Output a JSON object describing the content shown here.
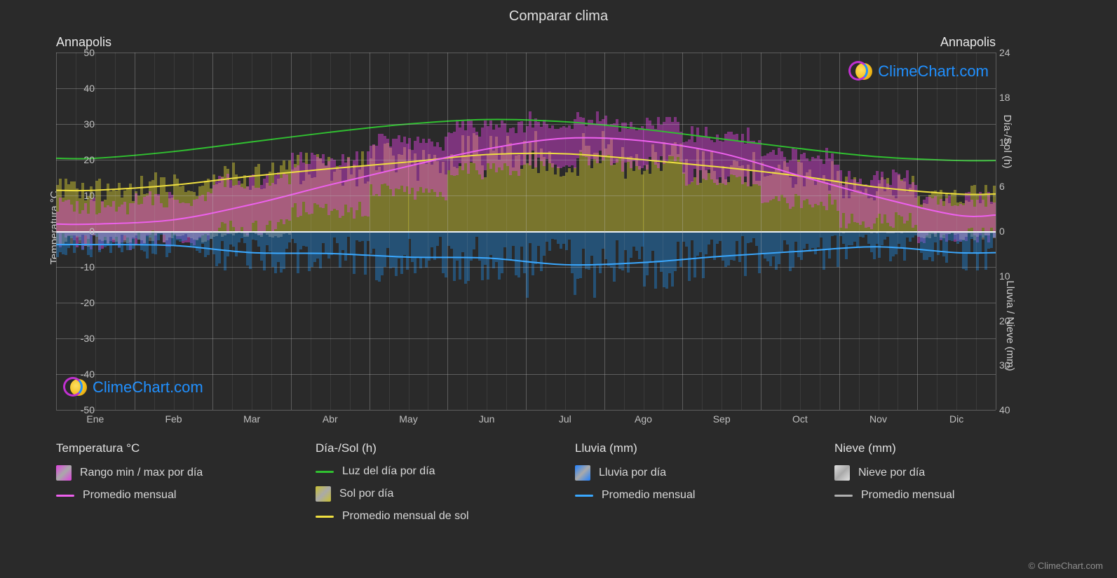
{
  "title": "Comparar clima",
  "city_left": "Annapolis",
  "city_right": "Annapolis",
  "watermark_text": "ClimeChart.com",
  "copyright": "© ClimeChart.com",
  "background_color": "#2a2a2a",
  "grid_color": "#b8b8b8",
  "grid_minor_color": "#b8b8b8",
  "text_color": "#d0d0d0",
  "axis_left": {
    "label": "Temperatura °C",
    "min": -50,
    "max": 50,
    "step": 10,
    "ticks": [
      50,
      40,
      30,
      20,
      10,
      0,
      -10,
      -20,
      -30,
      -40,
      -50
    ]
  },
  "axis_right_top": {
    "label": "Día-/Sol (h)",
    "ticks": [
      24,
      18,
      12,
      6,
      0
    ],
    "range_temp": [
      0,
      50
    ]
  },
  "axis_right_bot": {
    "label": "Lluvia / Nieve (mm)",
    "ticks": [
      0,
      10,
      20,
      30,
      40
    ],
    "range_temp": [
      0,
      -50
    ]
  },
  "months": [
    "Ene",
    "Feb",
    "Mar",
    "Abr",
    "May",
    "Jun",
    "Jul",
    "Ago",
    "Sep",
    "Oct",
    "Nov",
    "Dic"
  ],
  "series": {
    "daylight_line": {
      "color": "#30c030",
      "width": 2,
      "values_h": [
        9.8,
        10.7,
        12.0,
        13.3,
        14.4,
        15.0,
        14.7,
        13.7,
        12.4,
        11.1,
        10.0,
        9.5
      ]
    },
    "sun_avg_line": {
      "color": "#f0e040",
      "width": 2,
      "values_h": [
        5.5,
        6.2,
        7.4,
        8.4,
        9.3,
        10.3,
        10.4,
        9.6,
        8.6,
        7.4,
        5.9,
        5.0
      ]
    },
    "temp_avg_line": {
      "color": "#ee60ee",
      "width": 2,
      "values_c": [
        2.0,
        3.2,
        7.5,
        13.0,
        18.2,
        23.0,
        26.0,
        25.3,
        21.8,
        15.5,
        9.5,
        4.5
      ]
    },
    "rain_avg_line": {
      "color": "#3aa8ff",
      "width": 2,
      "values_mm": [
        3.0,
        3.2,
        4.8,
        5.0,
        5.8,
        6.0,
        7.5,
        7.0,
        5.6,
        4.5,
        3.5,
        4.8
      ]
    },
    "temp_range_bars": {
      "color": "#e040e0",
      "opacity": 0.45,
      "min_c": [
        -3,
        -2,
        1,
        6,
        11,
        17,
        20,
        19,
        15,
        8,
        3,
        -1
      ],
      "max_c": [
        7,
        9,
        14,
        20,
        25,
        29,
        31,
        30,
        27,
        21,
        15,
        9
      ]
    },
    "sun_bars": {
      "color": "#c8c030",
      "opacity": 0.5,
      "values_h": [
        5.5,
        6.2,
        7.4,
        8.4,
        9.3,
        10.3,
        10.4,
        9.6,
        8.6,
        7.4,
        5.9,
        5.0
      ]
    },
    "rain_bars": {
      "color": "#2080d0",
      "opacity": 0.45,
      "values_mm": [
        3.0,
        3.2,
        4.8,
        5.0,
        5.8,
        6.0,
        7.5,
        7.0,
        5.6,
        4.5,
        3.5,
        4.8
      ]
    },
    "snow_bars": {
      "color": "#c8c8c8",
      "opacity": 0.3,
      "values_mm": [
        2.0,
        1.5,
        0.8,
        0,
        0,
        0,
        0,
        0,
        0,
        0,
        0.3,
        1.2
      ]
    }
  },
  "legend": {
    "groups": [
      {
        "title": "Temperatura °C",
        "items": [
          {
            "type": "swatch",
            "color": "#e040e0",
            "gradient": true,
            "label": "Rango min / max por día"
          },
          {
            "type": "line",
            "color": "#ee60ee",
            "label": "Promedio mensual"
          }
        ]
      },
      {
        "title": "Día-/Sol (h)",
        "items": [
          {
            "type": "line",
            "color": "#30c030",
            "label": "Luz del día por día"
          },
          {
            "type": "swatch",
            "color": "#c8c030",
            "gradient": true,
            "label": "Sol por día"
          },
          {
            "type": "line",
            "color": "#f0e040",
            "label": "Promedio mensual de sol"
          }
        ]
      },
      {
        "title": "Lluvia (mm)",
        "items": [
          {
            "type": "swatch",
            "color": "#2080ff",
            "gradient": true,
            "label": "Lluvia por día"
          },
          {
            "type": "line",
            "color": "#3aa8ff",
            "label": "Promedio mensual"
          }
        ]
      },
      {
        "title": "Nieve (mm)",
        "items": [
          {
            "type": "swatch",
            "color": "#e0e0e0",
            "gradient": true,
            "label": "Nieve por día"
          },
          {
            "type": "line",
            "color": "#b0b0b0",
            "label": "Promedio mensual"
          }
        ]
      }
    ]
  }
}
